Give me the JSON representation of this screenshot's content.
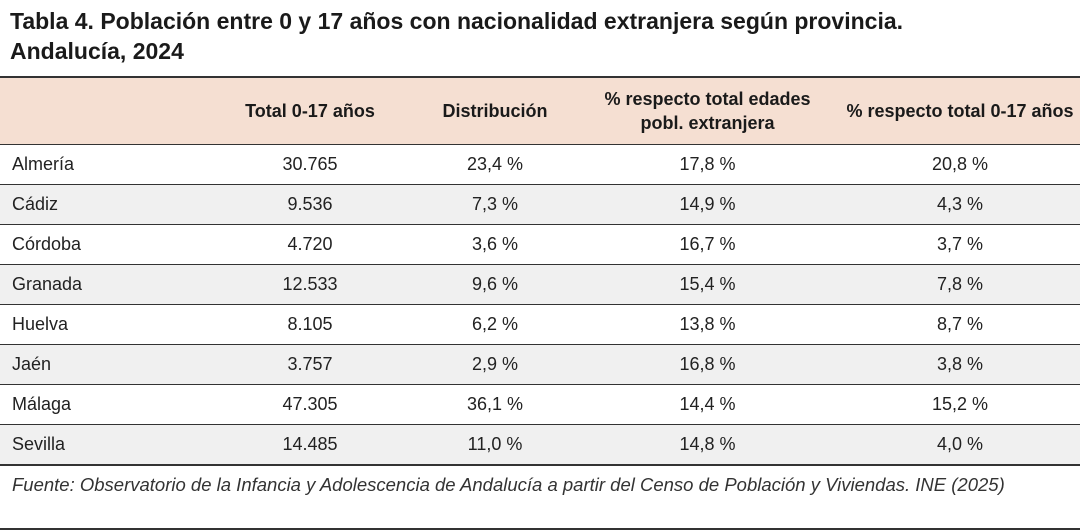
{
  "title_line1": "Tabla 4. Población entre 0 y 17 años con nacionalidad extranjera según provincia.",
  "title_line2": "Andalucía, 2024",
  "columns": [
    "",
    "Total 0-17 años",
    "Distribución",
    "% respecto total edades pobl. extranjera",
    "% respecto total 0-17 años"
  ],
  "rows": [
    {
      "provincia": "Almería",
      "total": "30.765",
      "distribucion": "23,4 %",
      "pct_extranjera": "17,8 %",
      "pct_0_17": "20,8 %"
    },
    {
      "provincia": "Cádiz",
      "total": "9.536",
      "distribucion": "7,3 %",
      "pct_extranjera": "14,9 %",
      "pct_0_17": "4,3 %"
    },
    {
      "provincia": "Córdoba",
      "total": "4.720",
      "distribucion": "3,6 %",
      "pct_extranjera": "16,7 %",
      "pct_0_17": "3,7 %"
    },
    {
      "provincia": "Granada",
      "total": "12.533",
      "distribucion": "9,6 %",
      "pct_extranjera": "15,4 %",
      "pct_0_17": "7,8 %"
    },
    {
      "provincia": "Huelva",
      "total": "8.105",
      "distribucion": "6,2 %",
      "pct_extranjera": "13,8 %",
      "pct_0_17": "8,7 %"
    },
    {
      "provincia": "Jaén",
      "total": "3.757",
      "distribucion": "2,9 %",
      "pct_extranjera": "16,8 %",
      "pct_0_17": "3,8 %"
    },
    {
      "provincia": "Málaga",
      "total": "47.305",
      "distribucion": "36,1 %",
      "pct_extranjera": "14,4 %",
      "pct_0_17": "15,2 %"
    },
    {
      "provincia": "Sevilla",
      "total": "14.485",
      "distribucion": "11,0 %",
      "pct_extranjera": "14,8 %",
      "pct_0_17": "4,0 %"
    }
  ],
  "source": "Fuente: Observatorio de la Infancia y Adolescencia de Andalucía a partir del Censo de Población y Viviendas. INE (2025)",
  "colors": {
    "header_bg": "#f5dfd2",
    "alt_row_bg": "#f0f0f0",
    "rule": "#333333"
  }
}
